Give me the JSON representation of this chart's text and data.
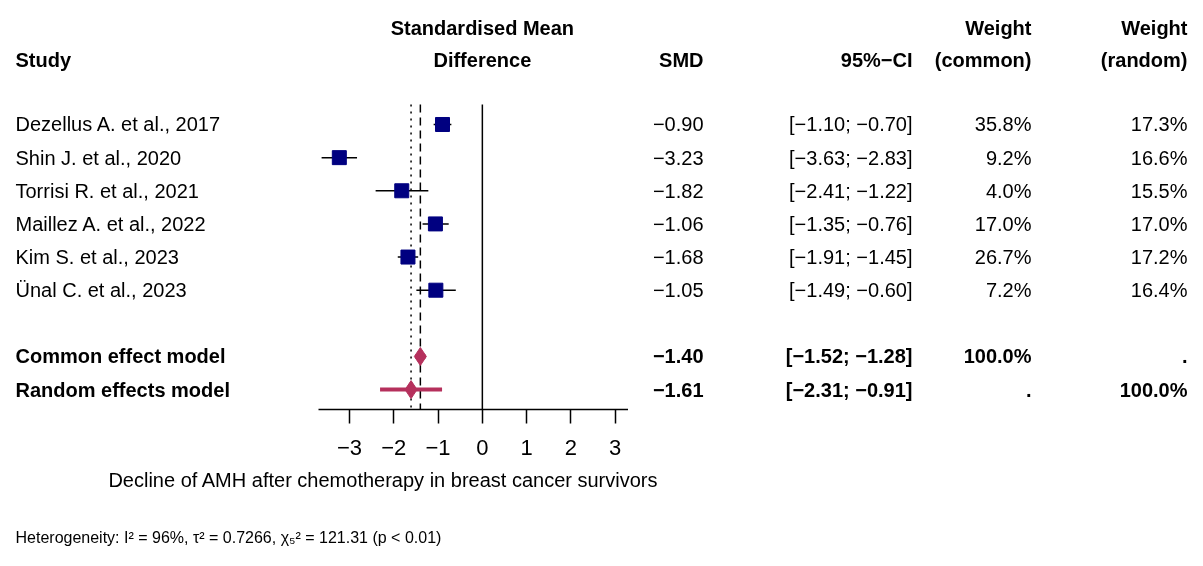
{
  "chart_data": {
    "type": "scatter",
    "orientation": "horizontal",
    "title": "Standardised Mean Difference",
    "ylabel": "Study",
    "xlabel": "Decline of AMH after chemotherapy in breast cancer survivors",
    "categories": [
      "Dezellus A. et al., 2017",
      "Shin J. et al., 2020",
      "Torrisi R. et al., 2021",
      "Maillez A. et al., 2022",
      "Kim S. et al., 2023",
      "Ünal C. et al., 2023",
      null,
      "Common effect model",
      "Random effects model"
    ],
    "series": [
      {
        "color": "#000080",
        "values": [
          -0.9,
          -3.23,
          -1.82,
          -1.06,
          -1.68,
          -1.05,
          null,
          null,
          null
        ],
        "errors": [
          [
            -1.1,
            -0.7
          ],
          [
            -3.63,
            -2.83
          ],
          [
            -2.41,
            -1.22
          ],
          [
            -1.35,
            -0.76
          ],
          [
            -1.91,
            -1.45
          ],
          [
            -1.49,
            -0.6
          ],
          null,
          null,
          null
        ]
      },
      {
        "color": "#b5305c",
        "marker": "diamond",
        "values": [
          null,
          null,
          null,
          null,
          null,
          null,
          null,
          -1.4,
          -1.61
        ],
        "errors": [
          null,
          null,
          null,
          null,
          null,
          null,
          null,
          [
            -1.52,
            -1.28
          ],
          [
            -2.31,
            -0.91
          ]
        ]
      }
    ],
    "marker": "square",
    "xlim": [
      -3.7,
      3.3
    ],
    "xticks": [
      -3,
      -2,
      -1,
      0,
      1,
      2,
      3
    ],
    "ref_lines": [
      {
        "axis": "x",
        "value": 0,
        "line_style": "solid",
        "color": "#000000"
      },
      {
        "axis": "x",
        "value": -1.4,
        "line_style": "dashed",
        "color": "#000000"
      },
      {
        "axis": "x",
        "value": -1.61,
        "line_style": "dotted",
        "color": "#000000"
      }
    ],
    "annotations": [
      "SMD",
      "95%−CI",
      "Weight (common)",
      "Weight (random)",
      "−0.90",
      "[−1.10; −0.70]",
      "35.8%",
      "17.3%",
      "−3.23",
      "[−3.63; −2.83]",
      "9.2%",
      "16.6%",
      "−1.82",
      "[−2.41; −1.22]",
      "4.0%",
      "15.5%",
      "−1.06",
      "[−1.35; −0.76]",
      "17.0%",
      "17.0%",
      "−1.68",
      "[−1.91; −1.45]",
      "26.7%",
      "17.2%",
      "−1.05",
      "[−1.49; −0.60]",
      "7.2%",
      "16.4%",
      "−1.40",
      "[−1.52; −1.28]",
      "100.0%",
      ".",
      "−1.61",
      "[−2.31; −0.91]",
      ".",
      "100.0%",
      "Heterogeneity: I² = 96%, τ² = 0.7266, χ₅² = 121.31 (p < 0.01)"
    ]
  }
}
